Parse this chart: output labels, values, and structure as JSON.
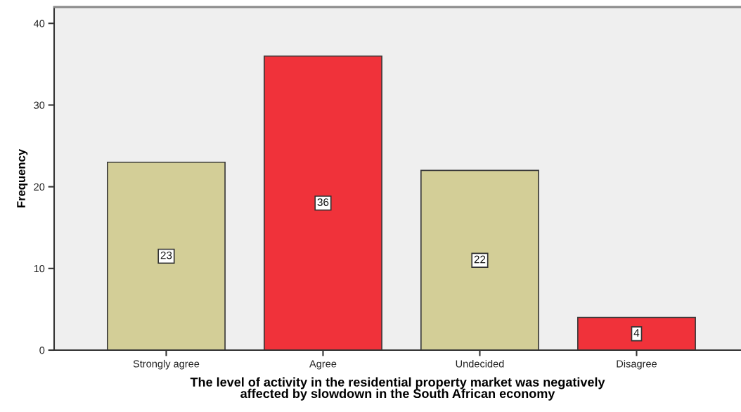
{
  "chart_data": {
    "type": "bar",
    "categories": [
      "Strongly agree",
      "Agree",
      "Undecided",
      "Disagree"
    ],
    "values": [
      23,
      36,
      22,
      4
    ],
    "colors": [
      "#d3ce97",
      "#f0323a",
      "#d3ce97",
      "#f0323a"
    ],
    "xlabel": "The level of activity in the residential property market was negatively\naffected by slowdown in the South African economy",
    "ylabel": "Frequency",
    "ylim": [
      0,
      42
    ],
    "yticks": [
      0,
      10,
      20,
      30,
      40
    ],
    "data_labels": true,
    "grid": false
  }
}
